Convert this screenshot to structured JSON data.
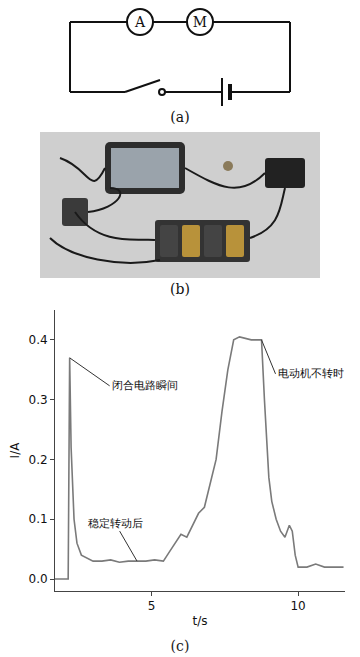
{
  "circuit": {
    "ammeter": "A",
    "motor": "M",
    "caption": "(a)"
  },
  "photo": {
    "caption": "(b)"
  },
  "chart_data": {
    "type": "line",
    "caption": "(c)",
    "x_label": "t/s",
    "y_label": "I/A",
    "x": [
      1.7,
      2.15,
      2.2,
      2.25,
      2.35,
      2.45,
      2.6,
      2.8,
      3.0,
      3.3,
      3.6,
      3.9,
      4.2,
      4.5,
      4.8,
      5.1,
      5.4,
      5.6,
      5.8,
      6.0,
      6.2,
      6.4,
      6.6,
      6.8,
      7.0,
      7.2,
      7.4,
      7.6,
      7.8,
      8.0,
      8.4,
      8.75,
      8.85,
      9.0,
      9.1,
      9.25,
      9.4,
      9.55,
      9.7,
      9.8,
      9.9,
      10.0,
      10.3,
      10.6,
      10.9,
      11.2,
      11.55
    ],
    "values": [
      0,
      0,
      0.37,
      0.22,
      0.1,
      0.06,
      0.04,
      0.035,
      0.03,
      0.03,
      0.032,
      0.028,
      0.03,
      0.03,
      0.03,
      0.032,
      0.03,
      0.045,
      0.06,
      0.075,
      0.07,
      0.09,
      0.11,
      0.12,
      0.16,
      0.2,
      0.28,
      0.35,
      0.4,
      0.405,
      0.4,
      0.4,
      0.3,
      0.17,
      0.13,
      0.1,
      0.08,
      0.07,
      0.09,
      0.08,
      0.04,
      0.02,
      0.02,
      0.025,
      0.02,
      0.02,
      0.02
    ],
    "color": "#7a7a7a",
    "xlim": [
      1.7,
      11.6
    ],
    "xticks": [
      5,
      10
    ],
    "ylim": [
      -0.02,
      0.45
    ],
    "yticks": [
      {
        "value": 0,
        "label": "0.0"
      },
      0.1,
      0.2,
      0.3,
      0.4
    ],
    "grid": false,
    "annotations": [
      {
        "text": "闭合电路瞬间",
        "x": 2.2,
        "y": 0.37
      },
      {
        "text": "电动机不转时",
        "x": 8.75,
        "y": 0.4
      },
      {
        "text": "稳定转动后",
        "x": 4.5,
        "y": 0.03
      }
    ]
  }
}
